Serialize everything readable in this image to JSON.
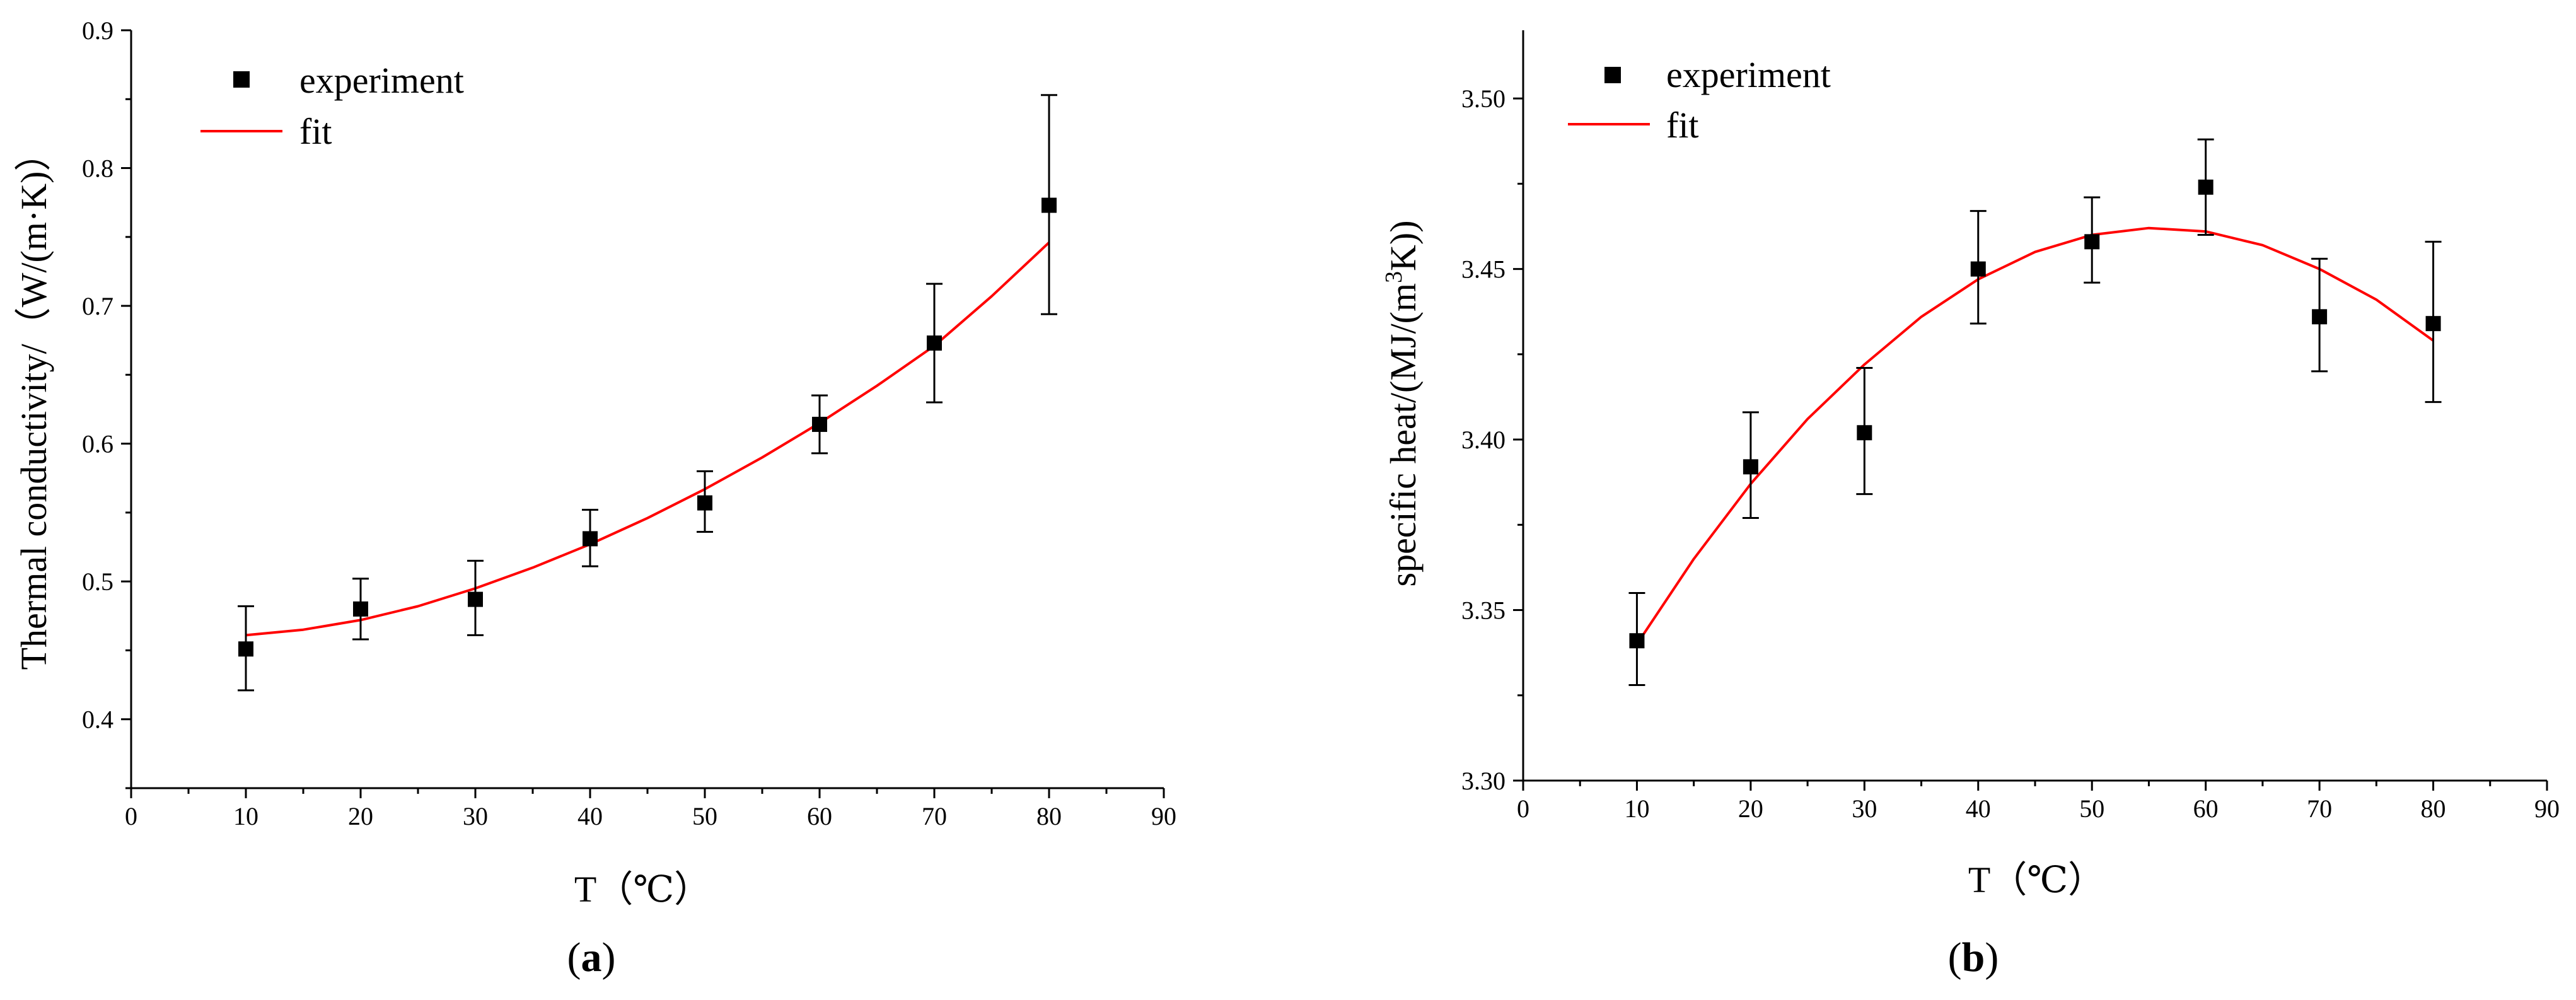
{
  "colors": {
    "fit_line": "#ff0000",
    "marker": "#000000",
    "axis": "#000000"
  },
  "chart_data": [
    {
      "type": "scatter",
      "panel_label": "(a)",
      "panel_letter": "a",
      "xlabel": "T（℃）",
      "ylabel": "Thermal conductivity/（W/(m·K)）",
      "xlim": [
        0,
        90
      ],
      "ylim": [
        0.35,
        0.9
      ],
      "xticks": [
        0,
        10,
        20,
        30,
        40,
        50,
        60,
        70,
        80,
        90
      ],
      "yticks": [
        0.4,
        0.5,
        0.6,
        0.7,
        0.8,
        0.9
      ],
      "ytick_labels": [
        "0.4",
        "0.5",
        "0.6",
        "0.7",
        "0.8",
        "0.9"
      ],
      "legend": {
        "position": "top-left",
        "entries": [
          "experiment",
          "fit"
        ]
      },
      "series": [
        {
          "name": "experiment",
          "kind": "markers-with-error-bars",
          "x": [
            10,
            20,
            30,
            40,
            50,
            60,
            70,
            80
          ],
          "y": [
            0.451,
            0.48,
            0.487,
            0.531,
            0.557,
            0.614,
            0.673,
            0.773
          ],
          "yerr_low": [
            0.421,
            0.458,
            0.461,
            0.511,
            0.536,
            0.593,
            0.63,
            0.694
          ],
          "yerr_high": [
            0.482,
            0.502,
            0.515,
            0.552,
            0.58,
            0.635,
            0.716,
            0.853
          ]
        },
        {
          "name": "fit",
          "kind": "line",
          "x": [
            10,
            15,
            20,
            25,
            30,
            35,
            40,
            45,
            50,
            55,
            60,
            65,
            70,
            75,
            80
          ],
          "y": [
            0.461,
            0.465,
            0.472,
            0.482,
            0.495,
            0.51,
            0.527,
            0.546,
            0.567,
            0.59,
            0.615,
            0.642,
            0.671,
            0.707,
            0.746
          ]
        }
      ]
    },
    {
      "type": "scatter",
      "panel_label": "(b)",
      "panel_letter": "b",
      "xlabel": "T（℃）",
      "ylabel_main": "specific heat/(MJ/(m",
      "ylabel_sup": "3",
      "ylabel_end": "K))",
      "xlim": [
        0,
        90
      ],
      "ylim": [
        3.3,
        3.52
      ],
      "xticks": [
        0,
        10,
        20,
        30,
        40,
        50,
        60,
        70,
        80,
        90
      ],
      "yticks": [
        3.3,
        3.35,
        3.4,
        3.45,
        3.5
      ],
      "ytick_labels": [
        "3.30",
        "3.35",
        "3.40",
        "3.45",
        "3.50"
      ],
      "legend": {
        "position": "top-left",
        "entries": [
          "experiment",
          "fit"
        ]
      },
      "series": [
        {
          "name": "experiment",
          "kind": "markers-with-error-bars",
          "x": [
            10,
            20,
            30,
            40,
            50,
            60,
            70,
            80
          ],
          "y": [
            3.341,
            3.392,
            3.402,
            3.45,
            3.458,
            3.474,
            3.436,
            3.434
          ],
          "yerr_low": [
            3.328,
            3.377,
            3.384,
            3.434,
            3.446,
            3.46,
            3.42,
            3.411
          ],
          "yerr_high": [
            3.355,
            3.408,
            3.421,
            3.467,
            3.471,
            3.488,
            3.453,
            3.458
          ]
        },
        {
          "name": "fit",
          "kind": "line",
          "x": [
            10,
            15,
            20,
            25,
            30,
            35,
            40,
            45,
            50,
            55,
            60,
            65,
            70,
            75,
            80
          ],
          "y": [
            3.34,
            3.365,
            3.387,
            3.406,
            3.422,
            3.436,
            3.447,
            3.455,
            3.46,
            3.462,
            3.461,
            3.457,
            3.45,
            3.441,
            3.429
          ]
        }
      ]
    }
  ]
}
